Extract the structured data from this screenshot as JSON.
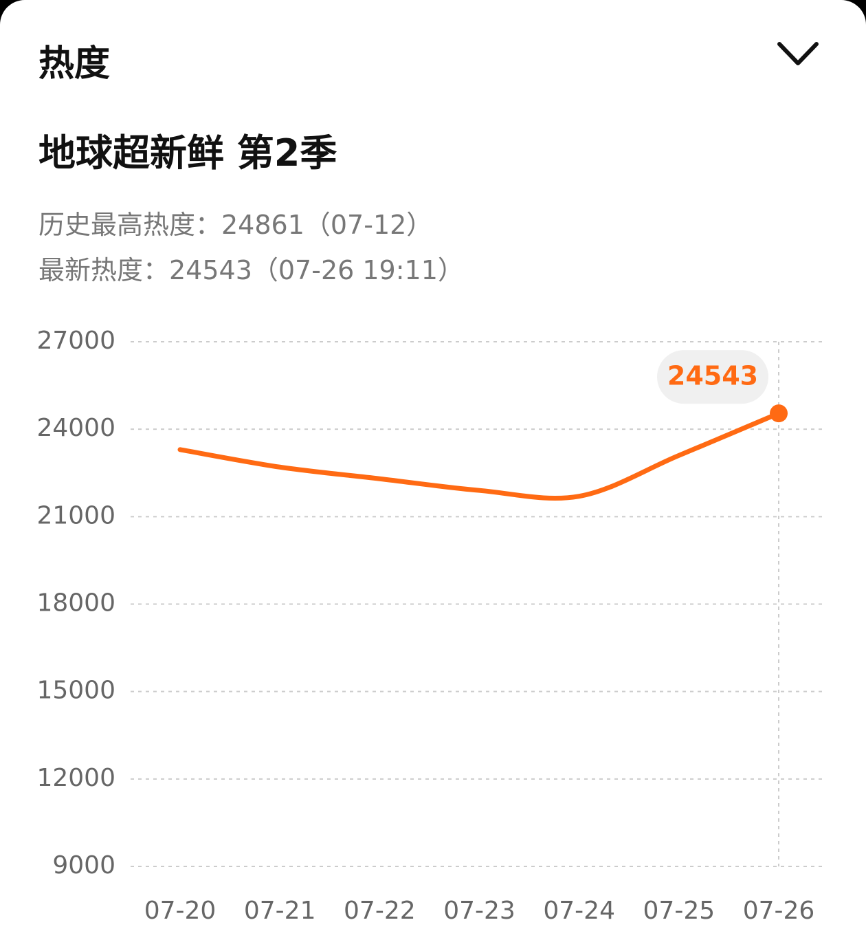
{
  "header": {
    "title": "热度"
  },
  "show": {
    "title": "地球超新鲜 第2季",
    "history_peak": "历史最高热度：24861（07-12）",
    "latest": "最新热度：24543（07-26 19:11）"
  },
  "chart_data": {
    "type": "line",
    "categories": [
      "07-20",
      "07-21",
      "07-22",
      "07-23",
      "07-24",
      "07-25",
      "07-26"
    ],
    "series": [
      {
        "color": "#ff6a13",
        "values": [
          23300,
          22700,
          22300,
          21900,
          21700,
          23100,
          24543
        ]
      }
    ],
    "ylim": [
      9000,
      27000
    ],
    "yticks": [
      9000,
      12000,
      15000,
      18000,
      21000,
      24000,
      27000
    ],
    "grid": true
  }
}
